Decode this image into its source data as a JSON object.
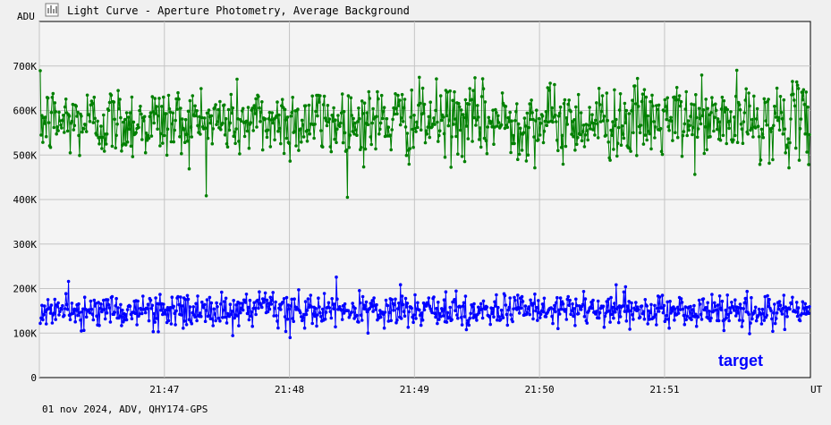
{
  "window": {
    "title": "Light Curve - Aperture Photometry, Average Background",
    "icon": "chart-icon"
  },
  "footer": {
    "info": "01 nov 2024, ADV, QHY174-GPS"
  },
  "colors": {
    "background": "#f0f0f0",
    "plot_background": "#f4f4f4",
    "grid": "#c4c4c4",
    "green_series": "#008000",
    "target_series": "#0000ff"
  },
  "chart_data": {
    "type": "line",
    "title": "",
    "ylabel": "ADU",
    "xlabel": "UT",
    "ylim": [
      0,
      800000
    ],
    "y_ticks": [
      0,
      100000,
      200000,
      300000,
      400000,
      500000,
      600000,
      700000
    ],
    "y_tick_labels": [
      "0",
      "100K",
      "200K",
      "300K",
      "400K",
      "500K",
      "600K",
      "700K"
    ],
    "x_range": [
      "21:46:00",
      "21:52:10"
    ],
    "x_ticks": [
      "21:46:00",
      "21:47:00",
      "21:48:00",
      "21:49:00",
      "21:50:00",
      "21:51:00"
    ],
    "x_tick_labels": [
      "",
      "21:47",
      "21:48",
      "21:49",
      "21:50",
      "21:51"
    ],
    "grid": true,
    "legend": "bottom-right label",
    "series": [
      {
        "name": "",
        "color": "#008000",
        "mean": 575000,
        "spread": 55000,
        "min": 405000,
        "max": 750000,
        "count": 900
      },
      {
        "name": "target",
        "color": "#0000ff",
        "mean": 150000,
        "spread": 25000,
        "min": 65000,
        "max": 255000,
        "count": 900
      }
    ]
  }
}
